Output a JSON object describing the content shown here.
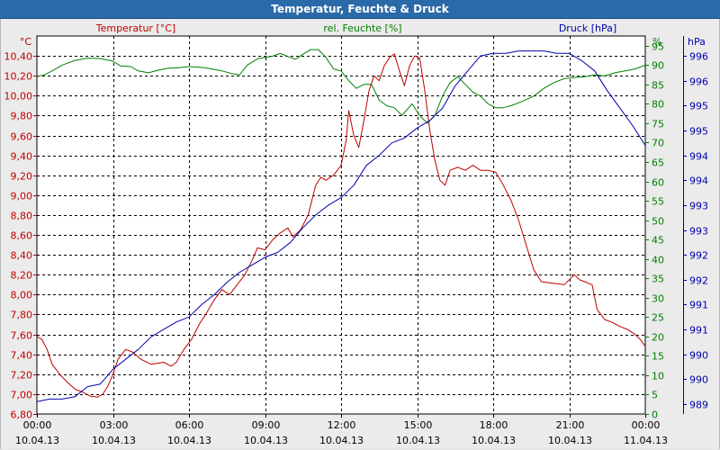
{
  "window": {
    "title": "Temperatur, Feuchte & Druck"
  },
  "colors": {
    "temperature": "#c00000",
    "humidity": "#008000",
    "pressure": "#0000b0",
    "plot_bg": "#ffffff"
  },
  "chart_data": {
    "type": "line",
    "title": "Temperatur, Feuchte & Druck",
    "x_ticks": [
      {
        "time": "00:00",
        "date": "10.04.13"
      },
      {
        "time": "03:00",
        "date": "10.04.13"
      },
      {
        "time": "06:00",
        "date": "10.04.13"
      },
      {
        "time": "09:00",
        "date": "10.04.13"
      },
      {
        "time": "12:00",
        "date": "10.04.13"
      },
      {
        "time": "15:00",
        "date": "10.04.13"
      },
      {
        "time": "18:00",
        "date": "10.04.13"
      },
      {
        "time": "21:00",
        "date": "10.04.13"
      },
      {
        "time": "00:00",
        "date": "11.04.13"
      }
    ],
    "xlim": [
      0,
      24
    ],
    "axes": {
      "temperature": {
        "label": "Temperatur [°C]",
        "unit": "°C",
        "ylim": [
          6.8,
          10.6
        ],
        "ticks": [
          "6,80",
          "7,00",
          "7,20",
          "7,40",
          "7,60",
          "7,80",
          "8,00",
          "8,20",
          "8,40",
          "8,60",
          "8,80",
          "9,00",
          "9,20",
          "9,40",
          "9,60",
          "9,80",
          "10,00",
          "10,20",
          "10,40"
        ]
      },
      "humidity": {
        "label": "rel. Feuchte [%]",
        "unit": "%",
        "ylim": [
          0,
          97.5
        ],
        "ticks": [
          "0",
          "5",
          "10",
          "15",
          "20",
          "25",
          "30",
          "35",
          "40",
          "45",
          "50",
          "55",
          "60",
          "65",
          "70",
          "75",
          "80",
          "85",
          "90",
          "95"
        ]
      },
      "pressure": {
        "label": "Druck [hPa]",
        "unit": "hPa",
        "ylim": [
          988.8,
          996.4
        ],
        "ticks": [
          "989",
          "990",
          "990",
          "991",
          "991",
          "992",
          "992",
          "993",
          "993",
          "994",
          "994",
          "995",
          "995",
          "996",
          "996"
        ]
      }
    },
    "series": [
      {
        "name": "Temperatur [°C]",
        "axis": "temperature",
        "color": "#c00000",
        "points": [
          [
            0,
            7.58
          ],
          [
            0.2,
            7.55
          ],
          [
            0.4,
            7.45
          ],
          [
            0.6,
            7.3
          ],
          [
            0.9,
            7.2
          ],
          [
            1.2,
            7.12
          ],
          [
            1.5,
            7.05
          ],
          [
            1.8,
            7.02
          ],
          [
            2.1,
            6.98
          ],
          [
            2.4,
            6.97
          ],
          [
            2.6,
            7.0
          ],
          [
            2.8,
            7.08
          ],
          [
            3.0,
            7.2
          ],
          [
            3.2,
            7.35
          ],
          [
            3.5,
            7.45
          ],
          [
            3.8,
            7.42
          ],
          [
            4.1,
            7.35
          ],
          [
            4.5,
            7.3
          ],
          [
            5.0,
            7.32
          ],
          [
            5.3,
            7.28
          ],
          [
            5.5,
            7.32
          ],
          [
            5.8,
            7.45
          ],
          [
            6.1,
            7.55
          ],
          [
            6.4,
            7.7
          ],
          [
            6.7,
            7.82
          ],
          [
            7.0,
            7.95
          ],
          [
            7.3,
            8.05
          ],
          [
            7.6,
            8.0
          ],
          [
            7.9,
            8.1
          ],
          [
            8.2,
            8.2
          ],
          [
            8.5,
            8.35
          ],
          [
            8.7,
            8.47
          ],
          [
            9.0,
            8.45
          ],
          [
            9.3,
            8.55
          ],
          [
            9.6,
            8.62
          ],
          [
            9.9,
            8.67
          ],
          [
            10.1,
            8.58
          ],
          [
            10.4,
            8.65
          ],
          [
            10.7,
            8.8
          ],
          [
            11.0,
            9.1
          ],
          [
            11.2,
            9.18
          ],
          [
            11.4,
            9.15
          ],
          [
            11.7,
            9.2
          ],
          [
            12.0,
            9.3
          ],
          [
            12.2,
            9.55
          ],
          [
            12.3,
            9.85
          ],
          [
            12.5,
            9.6
          ],
          [
            12.7,
            9.48
          ],
          [
            12.9,
            9.75
          ],
          [
            13.1,
            10.05
          ],
          [
            13.3,
            10.2
          ],
          [
            13.5,
            10.15
          ],
          [
            13.7,
            10.3
          ],
          [
            13.9,
            10.38
          ],
          [
            14.1,
            10.42
          ],
          [
            14.3,
            10.25
          ],
          [
            14.5,
            10.1
          ],
          [
            14.7,
            10.3
          ],
          [
            14.9,
            10.4
          ],
          [
            15.1,
            10.38
          ],
          [
            15.3,
            10.05
          ],
          [
            15.5,
            9.65
          ],
          [
            15.7,
            9.35
          ],
          [
            15.9,
            9.15
          ],
          [
            16.1,
            9.1
          ],
          [
            16.3,
            9.25
          ],
          [
            16.6,
            9.28
          ],
          [
            16.9,
            9.25
          ],
          [
            17.2,
            9.3
          ],
          [
            17.5,
            9.25
          ],
          [
            17.8,
            9.25
          ],
          [
            18.1,
            9.23
          ],
          [
            18.4,
            9.1
          ],
          [
            18.7,
            8.95
          ],
          [
            19.0,
            8.75
          ],
          [
            19.3,
            8.5
          ],
          [
            19.6,
            8.25
          ],
          [
            19.9,
            8.13
          ],
          [
            20.2,
            8.12
          ],
          [
            20.5,
            8.11
          ],
          [
            20.8,
            8.1
          ],
          [
            21.0,
            8.15
          ],
          [
            21.2,
            8.2
          ],
          [
            21.4,
            8.15
          ],
          [
            21.6,
            8.13
          ],
          [
            21.9,
            8.1
          ],
          [
            22.1,
            7.85
          ],
          [
            22.4,
            7.75
          ],
          [
            22.7,
            7.72
          ],
          [
            23.0,
            7.68
          ],
          [
            23.3,
            7.65
          ],
          [
            23.6,
            7.6
          ],
          [
            23.8,
            7.55
          ],
          [
            24.0,
            7.48
          ]
        ]
      },
      {
        "name": "rel. Feuchte [%]",
        "axis": "humidity",
        "color": "#008000",
        "points": [
          [
            0,
            87
          ],
          [
            0.3,
            87.5
          ],
          [
            0.6,
            88.5
          ],
          [
            1.0,
            90
          ],
          [
            1.5,
            91.2
          ],
          [
            2.0,
            91.8
          ],
          [
            2.5,
            91.7
          ],
          [
            3.0,
            91
          ],
          [
            3.3,
            89.8
          ],
          [
            3.7,
            89.6
          ],
          [
            4.0,
            88.5
          ],
          [
            4.4,
            88
          ],
          [
            4.8,
            88.7
          ],
          [
            5.2,
            89.2
          ],
          [
            5.6,
            89.3
          ],
          [
            6.0,
            89.6
          ],
          [
            6.5,
            89.4
          ],
          [
            6.9,
            89
          ],
          [
            7.3,
            88.5
          ],
          [
            7.7,
            87.8
          ],
          [
            8.0,
            87.5
          ],
          [
            8.3,
            90
          ],
          [
            8.7,
            91.6
          ],
          [
            9.0,
            92
          ],
          [
            9.3,
            92.3
          ],
          [
            9.6,
            93
          ],
          [
            9.9,
            92.2
          ],
          [
            10.2,
            91.5
          ],
          [
            10.5,
            92.8
          ],
          [
            10.8,
            94
          ],
          [
            11.1,
            94
          ],
          [
            11.4,
            92
          ],
          [
            11.7,
            89
          ],
          [
            12.0,
            88.5
          ],
          [
            12.3,
            86
          ],
          [
            12.6,
            84
          ],
          [
            12.9,
            85
          ],
          [
            13.2,
            85
          ],
          [
            13.5,
            81
          ],
          [
            13.8,
            79.5
          ],
          [
            14.1,
            79
          ],
          [
            14.4,
            77
          ],
          [
            14.6,
            78.5
          ],
          [
            14.8,
            80
          ],
          [
            15.1,
            77
          ],
          [
            15.4,
            75
          ],
          [
            15.7,
            77
          ],
          [
            16.0,
            82
          ],
          [
            16.3,
            85.5
          ],
          [
            16.6,
            87
          ],
          [
            16.9,
            85
          ],
          [
            17.2,
            83
          ],
          [
            17.5,
            82
          ],
          [
            17.8,
            80
          ],
          [
            18.1,
            79
          ],
          [
            18.4,
            79
          ],
          [
            18.7,
            79.5
          ],
          [
            19.1,
            80.5
          ],
          [
            19.6,
            82
          ],
          [
            20.0,
            84
          ],
          [
            20.4,
            85.5
          ],
          [
            20.8,
            86.5
          ],
          [
            21.2,
            86.8
          ],
          [
            21.6,
            87
          ],
          [
            22.0,
            87.5
          ],
          [
            22.4,
            87.2
          ],
          [
            22.8,
            88
          ],
          [
            23.2,
            88.5
          ],
          [
            23.6,
            89
          ],
          [
            24.0,
            90
          ]
        ]
      },
      {
        "name": "Druck [hPa]",
        "axis": "pressure",
        "color": "#0000b0",
        "points": [
          [
            0,
            989.05
          ],
          [
            0.5,
            989.1
          ],
          [
            1.0,
            989.1
          ],
          [
            1.5,
            989.15
          ],
          [
            2.0,
            989.35
          ],
          [
            2.5,
            989.4
          ],
          [
            3.0,
            989.7
          ],
          [
            3.5,
            989.9
          ],
          [
            4.0,
            990.1
          ],
          [
            4.5,
            990.35
          ],
          [
            5.0,
            990.5
          ],
          [
            5.5,
            990.65
          ],
          [
            6.0,
            990.75
          ],
          [
            6.5,
            991.0
          ],
          [
            7.0,
            991.2
          ],
          [
            7.5,
            991.45
          ],
          [
            8.0,
            991.65
          ],
          [
            8.5,
            991.8
          ],
          [
            9.0,
            991.95
          ],
          [
            9.5,
            992.05
          ],
          [
            10.0,
            992.25
          ],
          [
            10.5,
            992.55
          ],
          [
            11.0,
            992.8
          ],
          [
            11.5,
            993.0
          ],
          [
            12.0,
            993.15
          ],
          [
            12.5,
            993.4
          ],
          [
            13.0,
            993.8
          ],
          [
            13.5,
            994.0
          ],
          [
            14.0,
            994.25
          ],
          [
            14.5,
            994.35
          ],
          [
            15.0,
            994.55
          ],
          [
            15.5,
            994.7
          ],
          [
            16.0,
            994.95
          ],
          [
            16.5,
            995.4
          ],
          [
            17.0,
            995.7
          ],
          [
            17.5,
            996.0
          ],
          [
            18.0,
            996.05
          ],
          [
            18.5,
            996.05
          ],
          [
            19.0,
            996.1
          ],
          [
            19.5,
            996.1
          ],
          [
            20.0,
            996.1
          ],
          [
            20.5,
            996.05
          ],
          [
            21.0,
            996.05
          ],
          [
            21.5,
            995.9
          ],
          [
            22.0,
            995.7
          ],
          [
            22.5,
            995.3
          ],
          [
            23.0,
            994.95
          ],
          [
            23.5,
            994.6
          ],
          [
            24.0,
            994.2
          ]
        ]
      }
    ]
  }
}
